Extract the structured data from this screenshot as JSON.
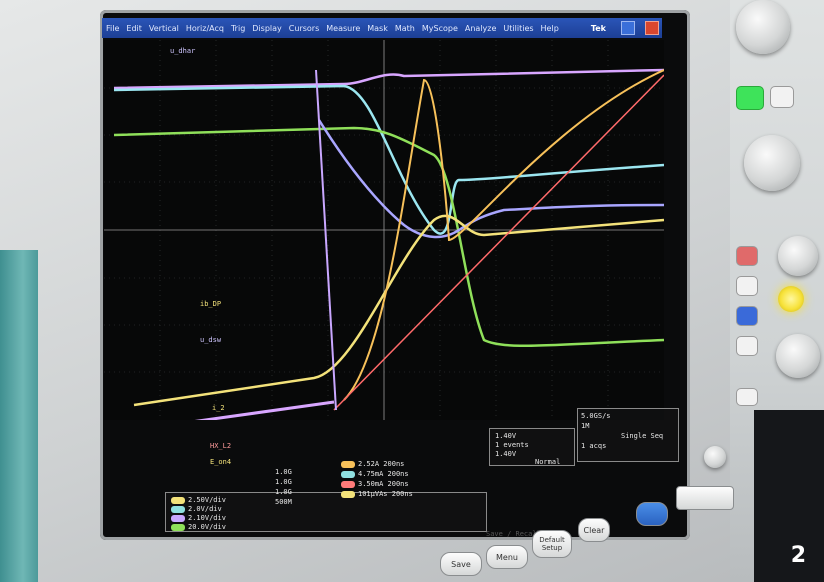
{
  "menu": {
    "items": [
      "File",
      "Edit",
      "Vertical",
      "Horiz/Acq",
      "Trig",
      "Display",
      "Cursors",
      "Measure",
      "Mask",
      "Math",
      "MyScope",
      "Analyze",
      "Utilities",
      "Help"
    ],
    "brand": "Tek"
  },
  "trace_labels": {
    "top": "u_dhar",
    "mid1": "ib_DP",
    "mid2": "u_dsw",
    "low1": "i_2",
    "low2": "HX_L2",
    "low3": "E_on4"
  },
  "channels": [
    {
      "scale": "2.50V/div",
      "coupling": "1.0G",
      "color": "#f3e27a"
    },
    {
      "scale": "2.0V/div",
      "coupling": "1.0G",
      "color": "#8fe0e0"
    },
    {
      "scale": "2.10V/div",
      "coupling": "1.0G",
      "color": "#c9a7ff"
    },
    {
      "scale": "20.0V/div",
      "coupling": "500M",
      "color": "#8fe05a"
    }
  ],
  "measurements": [
    {
      "value": "2.52A",
      "time": "200ns",
      "color": "#f7c15a"
    },
    {
      "value": "4.75mA",
      "time": "200ns",
      "color": "#8fe0e0"
    },
    {
      "value": "3.50mA",
      "time": "200ns",
      "color": "#ff7a7a"
    },
    {
      "value": "101µVAs",
      "time": "200ns",
      "color": "#f3e27a"
    }
  ],
  "trigger": {
    "level1": "1.40V",
    "level2": "1.40V",
    "mode": "Normal",
    "count": "1 events"
  },
  "acq": {
    "rate": "5.0GS/s",
    "record": "1M",
    "mode": "Single Seq",
    "acqs": "1 acqs"
  },
  "buttons": {
    "save": "Save",
    "menu": "Menu",
    "default_setup": "Default Setup",
    "clear": "Clear",
    "save_recall": "Save / Recall"
  },
  "badge": "2",
  "colors": {
    "menubar": "#1d3f95",
    "green_led": "#37e04a",
    "yellow_led": "#f7e23a"
  }
}
